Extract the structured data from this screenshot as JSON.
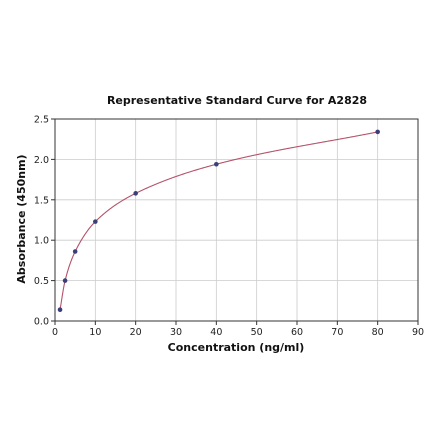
{
  "chart_data": {
    "type": "scatter",
    "title": "Representative Standard Curve for A2828",
    "xlabel": "Concentration (ng/ml)",
    "ylabel": "Absorbance (450nm)",
    "xlim": [
      0,
      90
    ],
    "ylim": [
      0,
      2.5
    ],
    "xticks": [
      0,
      10,
      20,
      30,
      40,
      50,
      60,
      70,
      80,
      90
    ],
    "yticks": [
      0.0,
      0.5,
      1.0,
      1.5,
      2.0,
      2.5
    ],
    "xtick_labels": [
      "0",
      "10",
      "20",
      "30",
      "40",
      "50",
      "60",
      "70",
      "80",
      "90"
    ],
    "ytick_labels": [
      "0.0",
      "0.5",
      "1.0",
      "1.5",
      "2.0",
      "2.5"
    ],
    "grid": true,
    "legend": "none",
    "series": [
      {
        "marker": "circle",
        "points": [
          {
            "x": 1.25,
            "y": 0.14
          },
          {
            "x": 2.5,
            "y": 0.5
          },
          {
            "x": 5,
            "y": 0.86
          },
          {
            "x": 10,
            "y": 1.23
          },
          {
            "x": 20,
            "y": 1.58
          },
          {
            "x": 40,
            "y": 1.94
          },
          {
            "x": 80,
            "y": 2.34
          }
        ]
      }
    ],
    "fit_curve": {
      "type": "smooth-fit",
      "passes_through_points": true
    },
    "colors": {
      "points": "#3b3f78",
      "curve": "#b4536a",
      "grid": "#cccccc",
      "axes": "#333333"
    }
  }
}
